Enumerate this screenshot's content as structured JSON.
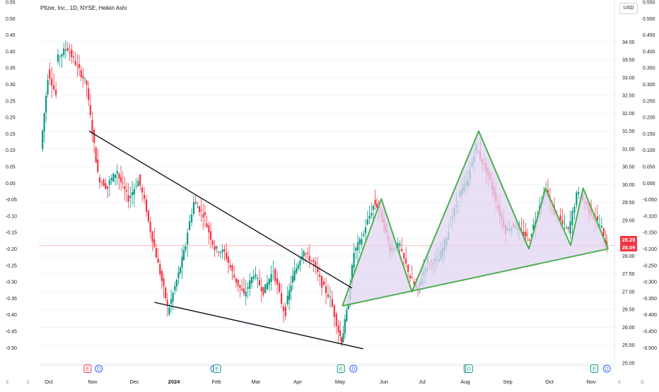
{
  "title": "Pfizer, Inc., 1D, NYSE, Heikin Ashi",
  "currency_button": "USD",
  "price_badges": {
    "last": "28.29",
    "prev": "28.09"
  },
  "colors": {
    "up": "#089981",
    "down": "#f23645",
    "pattern": "#4caf50",
    "fill": "#e1d6f3",
    "trendline": "#131722",
    "priceline": "#f5a3ab"
  },
  "bottom_corner_labels": [
    "S",
    "Z",
    "A",
    "G"
  ],
  "chart_data": {
    "type": "candlestick",
    "title": "Pfizer, Inc., 1D, NYSE, Heikin Ashi",
    "right_axis": {
      "ylim": [
        25.0,
        34.5
      ],
      "ticks": [
        "34.00",
        "33.50",
        "33.00",
        "32.50",
        "32.00",
        "31.50",
        "31.00",
        "30.50",
        "30.00",
        "29.50",
        "29.00",
        "28.50",
        "28.00",
        "27.50",
        "27.00",
        "26.50",
        "26.00",
        "25.50",
        "25.00"
      ]
    },
    "left_axis": {
      "ylim": [
        -0.525,
        0.55
      ],
      "ticks": [
        "0.55",
        "0.50",
        "0.45",
        "0.40",
        "0.35",
        "0.30",
        "0.25",
        "0.20",
        "0.15",
        "0.10",
        "0.05",
        "0.00",
        "-0.05",
        "-0.10",
        "-0.15",
        "-0.20",
        "-0.25",
        "-0.30",
        "-0.35",
        "-0.40",
        "-0.45",
        "-0.50"
      ]
    },
    "far_right_axis": {
      "ticks": [
        "0.550",
        "0.500",
        "0.450",
        "0.400",
        "0.350",
        "0.300",
        "0.250",
        "0.200",
        "0.150",
        "0.100",
        "0.050",
        "0.000",
        "-0.050",
        "-0.100",
        "-0.150",
        "-0.200",
        "-0.250",
        "-0.300",
        "-0.350",
        "-0.400",
        "-0.450",
        "-0.500"
      ]
    },
    "x_axis": {
      "labels": [
        "Oct",
        "Nov",
        "Dec",
        "2024",
        "Feb",
        "Mar",
        "Apr",
        "May",
        "Jun",
        "Jul",
        "Aug",
        "Sep",
        "Oct",
        "Nov"
      ]
    },
    "last_price": 28.29,
    "anchors": [
      [
        "2023-09-28",
        31.0,
        33.0
      ],
      [
        "2023-10-03",
        33.2,
        32.5
      ],
      [
        "2023-10-09",
        33.5,
        33.8
      ],
      [
        "2023-10-16",
        33.9,
        33.4
      ],
      [
        "2023-10-23",
        33.4,
        32.8
      ],
      [
        "2023-10-31",
        32.7,
        30.3
      ],
      [
        "2023-11-08",
        30.2,
        29.9
      ],
      [
        "2023-11-15",
        30.0,
        30.4
      ],
      [
        "2023-11-22",
        30.3,
        29.6
      ],
      [
        "2023-11-30",
        29.6,
        30.1
      ],
      [
        "2023-12-07",
        30.2,
        29.3
      ],
      [
        "2023-12-13",
        29.2,
        28.0
      ],
      [
        "2023-12-20",
        28.0,
        26.6
      ],
      [
        "2023-12-28",
        26.4,
        27.5
      ],
      [
        "2024-01-05",
        27.5,
        28.3
      ],
      [
        "2024-01-10",
        28.4,
        29.5
      ],
      [
        "2024-01-16",
        29.5,
        29.1
      ],
      [
        "2024-01-24",
        29.0,
        28.2
      ],
      [
        "2024-01-31",
        28.2,
        28.1
      ],
      [
        "2024-02-07",
        28.1,
        27.4
      ],
      [
        "2024-02-14",
        27.4,
        26.9
      ],
      [
        "2024-02-21",
        26.9,
        27.5
      ],
      [
        "2024-02-28",
        27.5,
        27.0
      ],
      [
        "2024-03-06",
        27.0,
        27.6
      ],
      [
        "2024-03-13",
        27.6,
        26.7
      ],
      [
        "2024-03-19",
        26.6,
        26.4
      ],
      [
        "2024-03-22",
        26.6,
        27.4
      ],
      [
        "2024-03-27",
        27.4,
        28.2
      ],
      [
        "2024-04-04",
        28.1,
        27.8
      ],
      [
        "2024-04-11",
        27.8,
        27.2
      ],
      [
        "2024-04-17",
        27.2,
        26.8
      ],
      [
        "2024-04-23",
        26.8,
        25.9
      ],
      [
        "2024-04-29",
        25.9,
        25.6
      ],
      [
        "2024-05-01",
        25.6,
        26.7
      ],
      [
        "2024-05-06",
        26.8,
        28.1
      ],
      [
        "2024-05-10",
        28.1,
        28.6
      ],
      [
        "2024-05-17",
        28.7,
        29.4
      ],
      [
        "2024-05-24",
        29.5,
        29.3
      ],
      [
        "2024-05-29",
        29.2,
        28.2
      ],
      [
        "2024-06-05",
        28.2,
        28.3
      ],
      [
        "2024-06-12",
        28.2,
        27.6
      ],
      [
        "2024-06-18",
        27.5,
        27.0
      ],
      [
        "2024-06-25",
        27.1,
        27.9
      ],
      [
        "2024-07-02",
        27.8,
        27.9
      ],
      [
        "2024-07-10",
        27.9,
        28.7
      ],
      [
        "2024-07-17",
        28.8,
        29.6
      ],
      [
        "2024-07-24",
        29.7,
        30.1
      ],
      [
        "2024-07-31",
        30.2,
        31.1
      ],
      [
        "2024-08-06",
        31.0,
        30.4
      ],
      [
        "2024-08-13",
        30.4,
        29.6
      ],
      [
        "2024-08-20",
        29.5,
        28.7
      ],
      [
        "2024-08-27",
        28.7,
        28.9
      ],
      [
        "2024-09-03",
        28.8,
        28.6
      ],
      [
        "2024-09-09",
        28.6,
        28.5
      ],
      [
        "2024-09-13",
        28.5,
        29.2
      ],
      [
        "2024-09-19",
        29.3,
        29.9
      ],
      [
        "2024-09-25",
        29.8,
        29.2
      ],
      [
        "2024-10-01",
        29.2,
        28.9
      ],
      [
        "2024-10-07",
        28.9,
        28.7
      ],
      [
        "2024-10-11",
        28.7,
        29.7
      ],
      [
        "2024-10-17",
        29.8,
        29.5
      ],
      [
        "2024-10-23",
        29.5,
        29.1
      ],
      [
        "2024-10-29",
        29.1,
        28.8
      ],
      [
        "2024-11-04",
        28.7,
        28.3
      ],
      [
        "2024-11-07",
        28.4,
        28.29
      ]
    ],
    "earnings_markers": [
      [
        "2023-10-31",
        "E",
        "down"
      ],
      [
        "2023-11-08",
        "D",
        "div"
      ],
      [
        "2024-01-30",
        "D",
        "div"
      ],
      [
        "2024-02-01",
        "E",
        "up"
      ],
      [
        "2024-04-30",
        "E",
        "up"
      ],
      [
        "2024-05-09",
        "D",
        "div"
      ],
      [
        "2024-07-30",
        "E",
        "up"
      ],
      [
        "2024-07-31",
        "D",
        "up"
      ],
      [
        "2024-10-29",
        "E",
        "up"
      ],
      [
        "2024-11-07",
        "D",
        "div"
      ]
    ],
    "trendlines": [
      {
        "from": [
          "2023-11-01",
          31.5
        ],
        "to": [
          "2024-05-08",
          27.1
        ]
      },
      {
        "from": [
          "2023-12-18",
          26.7
        ],
        "to": [
          "2024-05-16",
          25.4
        ]
      }
    ],
    "pattern": {
      "points": [
        [
          "2024-05-01",
          26.6
        ],
        [
          "2024-05-29",
          29.6
        ],
        [
          "2024-06-20",
          27.0
        ],
        [
          "2024-08-07",
          31.5
        ],
        [
          "2024-09-12",
          28.2
        ],
        [
          "2024-09-24",
          29.9
        ],
        [
          "2024-10-12",
          28.3
        ],
        [
          "2024-10-21",
          29.9
        ],
        [
          "2024-11-08",
          28.2
        ]
      ],
      "base_line": {
        "from": [
          "2024-05-01",
          26.6
        ],
        "to": [
          "2024-11-08",
          28.2
        ]
      }
    }
  }
}
